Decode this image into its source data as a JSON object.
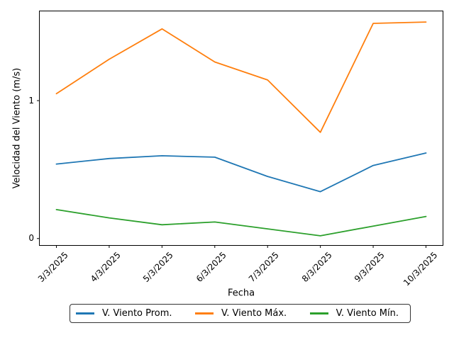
{
  "chart_data": {
    "type": "line",
    "title": "",
    "xlabel": "Fecha",
    "ylabel": "Velocidad del Viento (m/s)",
    "x": [
      "3/3/2025",
      "4/3/2025",
      "5/3/2025",
      "6/3/2025",
      "7/3/2025",
      "8/3/2025",
      "9/3/2025",
      "10/3/2025"
    ],
    "series": [
      {
        "name": "V. Viento Prom.",
        "color": "#1f77b4",
        "values": [
          0.54,
          0.58,
          0.6,
          0.59,
          0.45,
          0.34,
          0.53,
          0.62
        ]
      },
      {
        "name": "V. Viento Máx.",
        "color": "#ff7f0e",
        "values": [
          1.05,
          1.3,
          1.52,
          1.28,
          1.15,
          0.77,
          1.56,
          1.57
        ]
      },
      {
        "name": "V. Viento Mín.",
        "color": "#2ca02c",
        "values": [
          0.21,
          0.15,
          0.1,
          0.12,
          0.07,
          0.02,
          0.09,
          0.16
        ]
      }
    ],
    "yticks": [
      "0",
      "1"
    ],
    "ytick_values": [
      0,
      1
    ],
    "ylim": [
      -0.05,
      1.65
    ],
    "grid": false,
    "legend_position": "bottom-center",
    "axis_color": "#000000",
    "background_color": "#ffffff"
  }
}
